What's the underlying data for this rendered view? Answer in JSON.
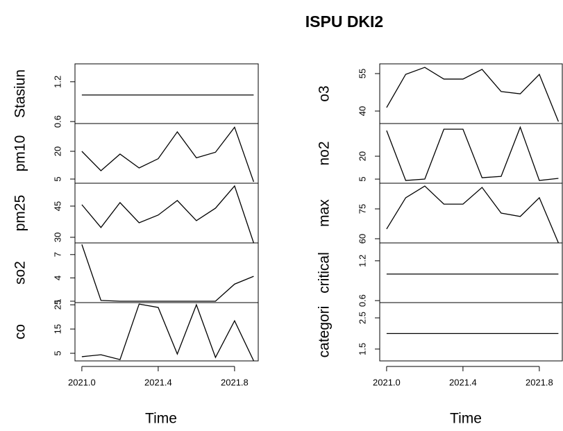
{
  "title": "ISPU DKI2",
  "chart_data": [
    {
      "type": "line",
      "ylabel": "Stasiun",
      "color": "#000000",
      "x": [
        2021.0,
        2021.1,
        2021.2,
        2021.3,
        2021.4,
        2021.5,
        2021.6,
        2021.7,
        2021.8,
        2021.9
      ],
      "values": [
        1,
        1,
        1,
        1,
        1,
        1,
        1,
        1,
        1,
        1
      ],
      "xlim": [
        2020.964,
        2021.924
      ],
      "ylim": [
        0.57,
        1.47
      ],
      "yticks": [
        0.6,
        1.2
      ]
    },
    {
      "type": "line",
      "ylabel": "pm10",
      "color": "#000000",
      "x": [
        2021.0,
        2021.1,
        2021.2,
        2021.3,
        2021.4,
        2021.5,
        2021.6,
        2021.7,
        2021.8,
        2021.9
      ],
      "values": [
        20,
        9.5,
        18.5,
        11,
        16,
        30.5,
        16.5,
        19.5,
        33,
        3.5
      ],
      "xlim": [
        2020.964,
        2021.924
      ],
      "ylim": [
        2.75,
        35
      ],
      "yticks": [
        5,
        20
      ]
    },
    {
      "type": "line",
      "ylabel": "pm25",
      "color": "#000000",
      "x": [
        2021.0,
        2021.1,
        2021.2,
        2021.3,
        2021.4,
        2021.5,
        2021.6,
        2021.7,
        2021.8,
        2021.9
      ],
      "values": [
        45.7,
        34.7,
        46.7,
        37,
        40.7,
        47.7,
        38,
        44,
        54.7,
        27.3
      ],
      "xlim": [
        2020.964,
        2021.924
      ],
      "ylim": [
        27.3,
        56
      ],
      "yticks": [
        30,
        45
      ]
    },
    {
      "type": "line",
      "ylabel": "so2",
      "color": "#000000",
      "x": [
        2021.0,
        2021.1,
        2021.2,
        2021.3,
        2021.4,
        2021.5,
        2021.6,
        2021.7,
        2021.8,
        2021.9
      ],
      "values": [
        8.3,
        1.1,
        1,
        1,
        1,
        1,
        1,
        1,
        3.2,
        4.2
      ],
      "xlim": [
        2020.964,
        2021.924
      ],
      "ylim": [
        0.82,
        8.5
      ],
      "yticks": [
        1,
        4,
        7
      ]
    },
    {
      "type": "line",
      "ylabel": "co",
      "xlabel": "Time",
      "color": "#000000",
      "x": [
        2021.0,
        2021.1,
        2021.2,
        2021.3,
        2021.4,
        2021.5,
        2021.6,
        2021.7,
        2021.8,
        2021.9
      ],
      "values": [
        3.6,
        4.4,
        2.4,
        25.3,
        23.9,
        4.7,
        25,
        3.3,
        18.4,
        1.9
      ],
      "xlim": [
        2020.964,
        2021.924
      ],
      "ylim": [
        1.86,
        25.9
      ],
      "yticks": [
        5,
        15,
        25
      ],
      "xticks": [
        {
          "value": 2021.0,
          "label": "2021.0"
        },
        2021.4,
        2021.8
      ]
    },
    {
      "type": "line",
      "ylabel": "o3",
      "color": "#000000",
      "x": [
        2021.0,
        2021.1,
        2021.2,
        2021.3,
        2021.4,
        2021.5,
        2021.6,
        2021.7,
        2021.8,
        2021.9
      ],
      "values": [
        41.4,
        54.7,
        57.5,
        52.8,
        52.8,
        56.7,
        47.8,
        46.9,
        54.7,
        35.8
      ],
      "xlim": [
        2020.964,
        2021.924
      ],
      "ylim": [
        35,
        58.9
      ],
      "yticks": [
        40,
        55
      ]
    },
    {
      "type": "line",
      "ylabel": "no2",
      "color": "#000000",
      "x": [
        2021.0,
        2021.1,
        2021.2,
        2021.3,
        2021.4,
        2021.5,
        2021.6,
        2021.7,
        2021.8,
        2021.9
      ],
      "values": [
        36.8,
        4.1,
        5,
        37.7,
        37.7,
        5.9,
        6.8,
        39,
        4.1,
        5.5
      ],
      "xlim": [
        2020.964,
        2021.924
      ],
      "ylim": [
        2.3,
        41.4
      ],
      "yticks": [
        5,
        20
      ]
    },
    {
      "type": "line",
      "ylabel": "max",
      "color": "#000000",
      "x": [
        2021.0,
        2021.1,
        2021.2,
        2021.3,
        2021.4,
        2021.5,
        2021.6,
        2021.7,
        2021.8,
        2021.9
      ],
      "values": [
        64.9,
        80.6,
        86.5,
        77.4,
        77.4,
        85.8,
        72.9,
        71.2,
        80.6,
        57.9
      ],
      "xlim": [
        2020.964,
        2021.924
      ],
      "ylim": [
        57.9,
        87.9
      ],
      "yticks": [
        60,
        75
      ]
    },
    {
      "type": "line",
      "ylabel": "critical",
      "color": "#000000",
      "x": [
        2021.0,
        2021.1,
        2021.2,
        2021.3,
        2021.4,
        2021.5,
        2021.6,
        2021.7,
        2021.8,
        2021.9
      ],
      "values": [
        1,
        1,
        1,
        1,
        1,
        1,
        1,
        1,
        1,
        1
      ],
      "xlim": [
        2020.964,
        2021.924
      ],
      "ylim": [
        0.57,
        1.47
      ],
      "yticks": [
        0.6,
        1.2
      ]
    },
    {
      "type": "line",
      "ylabel": "categori",
      "xlabel": "Time",
      "color": "#000000",
      "x": [
        2021.0,
        2021.1,
        2021.2,
        2021.3,
        2021.4,
        2021.5,
        2021.6,
        2021.7,
        2021.8,
        2021.9
      ],
      "values": [
        2,
        2,
        2,
        2,
        2,
        2,
        2,
        2,
        2,
        2
      ],
      "xlim": [
        2020.964,
        2021.924
      ],
      "ylim": [
        1.12,
        2.99
      ],
      "yticks": [
        1.5,
        2.5
      ],
      "xticks": [
        {
          "value": 2021.0,
          "label": "2021.0"
        },
        2021.4,
        2021.8
      ]
    }
  ]
}
